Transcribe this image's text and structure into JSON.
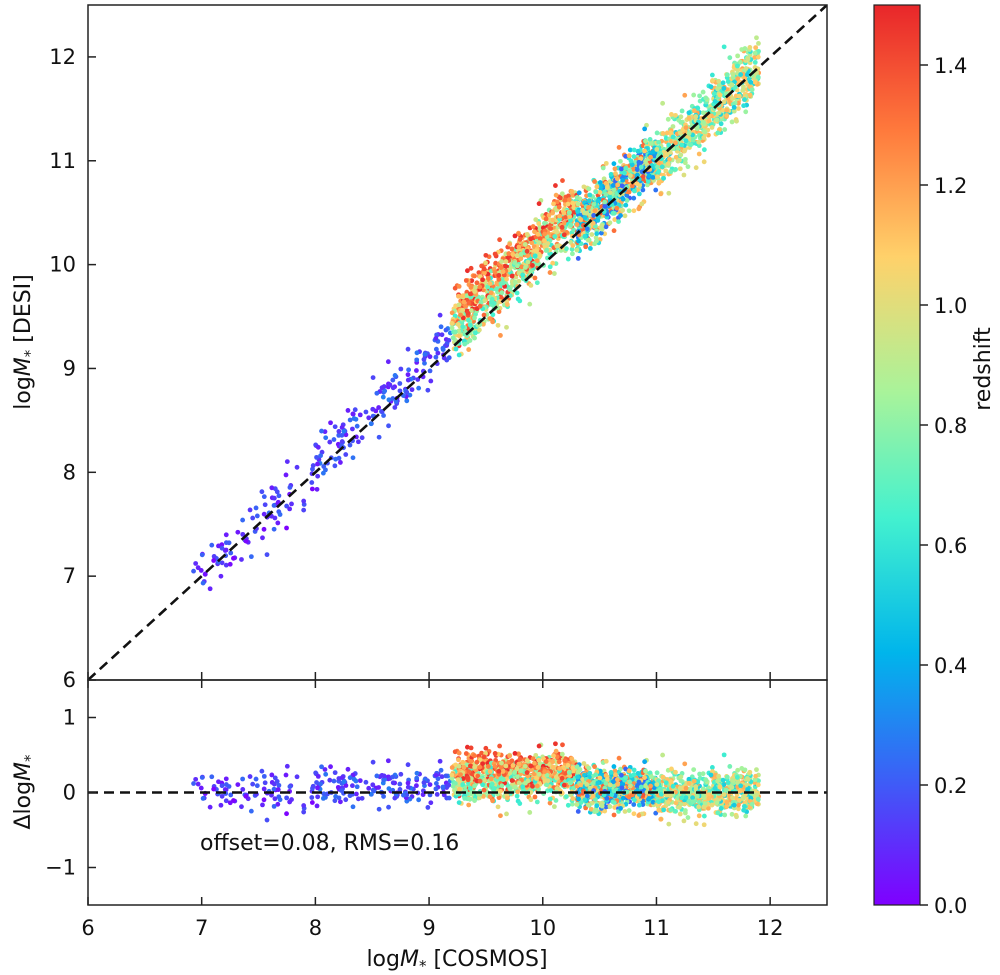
{
  "chart_data": [
    {
      "panel": "main",
      "type": "scatter",
      "xlabel_prefix": "log",
      "xlabel_var": "M",
      "xlabel_sub": "*",
      "xlabel_suffix": " [COSMOS]",
      "ylabel_prefix": "log",
      "ylabel_var": "M",
      "ylabel_sub": "*",
      "ylabel_suffix": " [DESI]",
      "xlim": [
        6,
        12.5
      ],
      "ylim": [
        6,
        12.5
      ],
      "xticks": [
        "6",
        "7",
        "8",
        "9",
        "10",
        "11",
        "12"
      ],
      "yticks": [
        "6",
        "7",
        "8",
        "9",
        "10",
        "11",
        "12"
      ],
      "reference_line": {
        "style": "dashed",
        "color": "#111111",
        "equation": "y = x"
      },
      "point_color_by": "redshift",
      "point_summary": [
        {
          "x_range": [
            6.9,
            8.0
          ],
          "typical_y_offset": 0.0,
          "redshift_range": [
            0.0,
            0.25
          ]
        },
        {
          "x_range": [
            8.0,
            9.2
          ],
          "typical_y_offset": 0.1,
          "redshift_range": [
            0.05,
            0.3
          ]
        },
        {
          "x_range": [
            9.2,
            10.3
          ],
          "typical_y_offset": 0.2,
          "redshift_range": [
            0.6,
            1.5
          ]
        },
        {
          "x_range": [
            10.3,
            11.0
          ],
          "typical_y_offset": 0.05,
          "redshift_range": [
            0.2,
            1.4
          ]
        },
        {
          "x_range": [
            11.0,
            11.9
          ],
          "typical_y_offset": 0.0,
          "redshift_range": [
            0.5,
            1.2
          ]
        }
      ]
    },
    {
      "panel": "residual",
      "type": "scatter",
      "xlabel_prefix": "log",
      "xlabel_var": "M",
      "xlabel_sub": "*",
      "xlabel_suffix": " [COSMOS]",
      "ylabel_prefix": "Δlog",
      "ylabel_var": "M",
      "ylabel_sub": "*",
      "xlim": [
        6,
        12.5
      ],
      "ylim": [
        -1.5,
        1.5
      ],
      "xticks": [
        "6",
        "7",
        "8",
        "9",
        "10",
        "11",
        "12"
      ],
      "yticks": [
        "−1",
        "0",
        "1"
      ],
      "reference_line": {
        "style": "dashed",
        "color": "#111111",
        "equation": "y = 0"
      },
      "annotation": "offset=0.08, RMS=0.16",
      "offset": 0.08,
      "rms": 0.16
    },
    {
      "panel": "colorbar",
      "type": "colorbar",
      "label": "redshift",
      "range": [
        0.0,
        1.5
      ],
      "ticks": [
        "0.0",
        "0.2",
        "0.4",
        "0.6",
        "0.8",
        "1.0",
        "1.2",
        "1.4"
      ],
      "colormap": "rainbow",
      "stops": [
        "#7f00ff",
        "#3c5ff7",
        "#00b5eb",
        "#43f1cf",
        "#a9f39a",
        "#ffd16a",
        "#ff7a3c",
        "#e8262a"
      ]
    }
  ]
}
